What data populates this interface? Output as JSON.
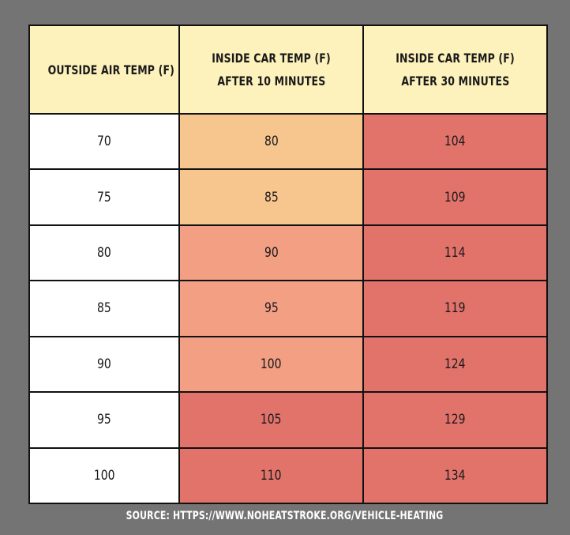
{
  "chart_data": {
    "type": "table",
    "columns": [
      {
        "line1": "OUTSIDE AIR TEMP (F)",
        "line2": ""
      },
      {
        "line1": "INSIDE CAR TEMP (F)",
        "line2": "AFTER 10 MINUTES"
      },
      {
        "line1": "INSIDE CAR TEMP (F)",
        "line2": "AFTER 30 MINUTES"
      }
    ],
    "rows": [
      [
        "70",
        "80",
        "104"
      ],
      [
        "75",
        "85",
        "109"
      ],
      [
        "80",
        "90",
        "114"
      ],
      [
        "85",
        "95",
        "119"
      ],
      [
        "90",
        "100",
        "124"
      ],
      [
        "95",
        "105",
        "129"
      ],
      [
        "100",
        "110",
        "134"
      ]
    ],
    "cell_colors": [
      [
        "white",
        "peach",
        "red"
      ],
      [
        "white",
        "peach",
        "red"
      ],
      [
        "white",
        "salmon",
        "red"
      ],
      [
        "white",
        "salmon",
        "red"
      ],
      [
        "white",
        "salmon",
        "red"
      ],
      [
        "white",
        "red",
        "red"
      ],
      [
        "white",
        "red",
        "red"
      ]
    ],
    "colors": {
      "background": "#747474",
      "header": "#fdf1bc",
      "white": "#ffffff",
      "peach": "#f7c68f",
      "salmon": "#f29f84",
      "red": "#e1736b",
      "grid": "#111111"
    }
  },
  "source": "SOURCE: HTTPS://WWW.NOHEATSTROKE.ORG/VEHICLE-HEATING"
}
